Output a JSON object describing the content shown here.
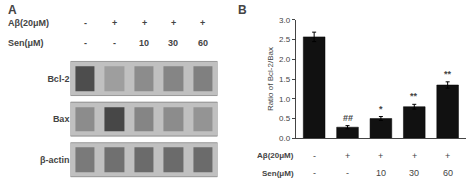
{
  "chart_data": [
    {
      "type": "heatmap",
      "title": "A",
      "categories": [
        "Bcl-2",
        "Bax",
        "β-actin"
      ],
      "rows": [
        {
          "name": "Aβ(20μM)",
          "labels": [
            "-",
            "+",
            "+",
            "+",
            "+"
          ]
        },
        {
          "name": "Sen(μM)",
          "labels": [
            "-",
            "-",
            "10",
            "30",
            "60"
          ]
        }
      ],
      "cells": [
        [
          0.3,
          0.62,
          0.55,
          0.52,
          0.5
        ],
        [
          0.55,
          0.28,
          0.52,
          0.55,
          0.58
        ],
        [
          0.48,
          0.44,
          0.42,
          0.42,
          0.42
        ]
      ],
      "zlim": [
        0,
        1
      ],
      "color": "#c0c0c0",
      "tick_labels": "y",
      "grid": false
    },
    {
      "type": "bar",
      "title": "B",
      "ylabel": "Ratio of Bcl-2/Bax",
      "rows": [
        {
          "name": "Aβ(20μM)",
          "labels": [
            "-",
            "+",
            "+",
            "+",
            "+"
          ]
        },
        {
          "name": "Sen(μM)",
          "labels": [
            "-",
            "-",
            "10",
            "30",
            "60"
          ]
        }
      ],
      "values": [
        2.57,
        0.28,
        0.5,
        0.8,
        1.35
      ],
      "errors": [
        0.12,
        0.04,
        0.05,
        0.06,
        0.08
      ],
      "annotations": [
        null,
        "##",
        "*",
        "**",
        "**"
      ],
      "color": "#111111",
      "ylim": [
        0.0,
        3.0
      ],
      "yticks": [
        {
          "value": 0,
          "label": "0.0"
        },
        0.5,
        {
          "value": 1,
          "label": "1.0"
        },
        1.5,
        {
          "value": 2,
          "label": "2.0"
        },
        2.5,
        {
          "value": 3,
          "label": "3.0"
        }
      ],
      "tick_labels": "y",
      "grid": false
    }
  ]
}
